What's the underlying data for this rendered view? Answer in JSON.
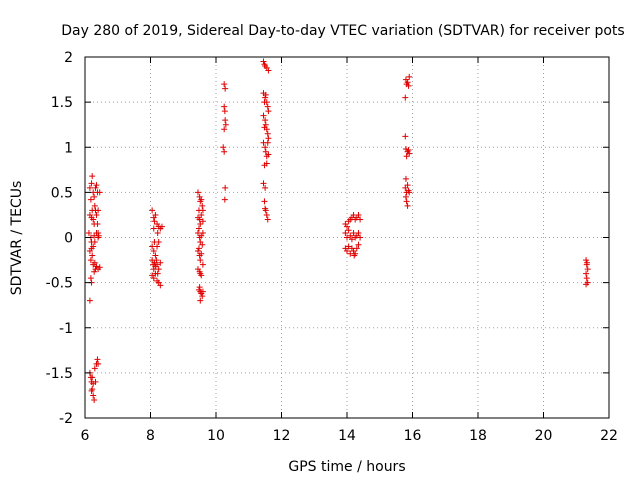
{
  "chart_data": {
    "type": "scatter",
    "title": "Day 280 of 2019, Sidereal Day-to-day VTEC variation (SDTVAR) for receiver pots",
    "xlabel": "GPS time / hours",
    "ylabel": "SDTVAR / TECUs",
    "xlim": [
      6,
      22
    ],
    "ylim": [
      -2,
      2
    ],
    "xticks": [
      6,
      8,
      10,
      12,
      14,
      16,
      18,
      20,
      22
    ],
    "yticks": [
      -2,
      -1.5,
      -1,
      -0.5,
      0,
      0.5,
      1,
      1.5,
      2
    ],
    "xtick_labels": [
      "6",
      "8",
      "10",
      "12",
      "14",
      "16",
      "18",
      "20",
      "22"
    ],
    "ytick_labels": [
      "-2",
      "-1.5",
      "-1",
      "-0.5",
      "0",
      "0.5",
      "1",
      "1.5",
      "2"
    ],
    "grid": true,
    "marker": "plus",
    "color": "#e00000",
    "series": [
      {
        "name": "SDTVAR",
        "points": [
          [
            6.15,
            0.55
          ],
          [
            6.18,
            0.42
          ],
          [
            6.2,
            0.6
          ],
          [
            6.22,
            0.68
          ],
          [
            6.25,
            0.5
          ],
          [
            6.28,
            0.45
          ],
          [
            6.3,
            0.35
          ],
          [
            6.32,
            0.55
          ],
          [
            6.35,
            0.58
          ],
          [
            6.38,
            0.5
          ],
          [
            6.4,
            0.3
          ],
          [
            6.45,
            0.5
          ],
          [
            6.15,
            0.25
          ],
          [
            6.2,
            0.22
          ],
          [
            6.22,
            0.3
          ],
          [
            6.25,
            0.2
          ],
          [
            6.28,
            0.15
          ],
          [
            6.32,
            0.3
          ],
          [
            6.35,
            0.25
          ],
          [
            6.38,
            0.15
          ],
          [
            6.4,
            0.05
          ],
          [
            6.12,
            0.05
          ],
          [
            6.18,
            0.0
          ],
          [
            6.2,
            -0.05
          ],
          [
            6.25,
            -0.1
          ],
          [
            6.28,
            0.02
          ],
          [
            6.3,
            -0.05
          ],
          [
            6.35,
            0.05
          ],
          [
            6.4,
            0.0
          ],
          [
            6.42,
            0.02
          ],
          [
            6.15,
            -0.15
          ],
          [
            6.18,
            -0.25
          ],
          [
            6.2,
            -0.12
          ],
          [
            6.22,
            -0.2
          ],
          [
            6.25,
            -0.3
          ],
          [
            6.3,
            -0.28
          ],
          [
            6.32,
            -0.35
          ],
          [
            6.35,
            -0.32
          ],
          [
            6.4,
            -0.35
          ],
          [
            6.45,
            -0.33
          ],
          [
            6.28,
            -0.38
          ],
          [
            6.18,
            -0.45
          ],
          [
            6.2,
            -0.5
          ],
          [
            6.15,
            -0.7
          ],
          [
            6.15,
            -1.5
          ],
          [
            6.18,
            -1.55
          ],
          [
            6.2,
            -1.6
          ],
          [
            6.22,
            -1.68
          ],
          [
            6.25,
            -1.75
          ],
          [
            6.28,
            -1.8
          ],
          [
            6.22,
            -1.55
          ],
          [
            6.3,
            -1.45
          ],
          [
            6.32,
            -1.6
          ],
          [
            6.35,
            -1.4
          ],
          [
            6.38,
            -1.35
          ],
          [
            6.4,
            -1.4
          ],
          [
            6.25,
            -1.62
          ],
          [
            6.2,
            -1.7
          ],
          [
            8.05,
            0.3
          ],
          [
            8.1,
            0.22
          ],
          [
            8.12,
            0.18
          ],
          [
            8.15,
            0.25
          ],
          [
            8.2,
            0.15
          ],
          [
            8.22,
            0.05
          ],
          [
            8.25,
            0.12
          ],
          [
            8.3,
            0.1
          ],
          [
            8.35,
            0.12
          ],
          [
            8.1,
            0.1
          ],
          [
            8.05,
            -0.1
          ],
          [
            8.1,
            -0.15
          ],
          [
            8.12,
            -0.05
          ],
          [
            8.15,
            -0.2
          ],
          [
            8.2,
            -0.1
          ],
          [
            8.25,
            -0.05
          ],
          [
            8.05,
            -0.25
          ],
          [
            8.08,
            -0.3
          ],
          [
            8.1,
            -0.35
          ],
          [
            8.12,
            -0.28
          ],
          [
            8.15,
            -0.32
          ],
          [
            8.2,
            -0.3
          ],
          [
            8.22,
            -0.4
          ],
          [
            8.25,
            -0.35
          ],
          [
            8.3,
            -0.28
          ],
          [
            8.18,
            -0.25
          ],
          [
            8.05,
            -0.42
          ],
          [
            8.1,
            -0.45
          ],
          [
            8.15,
            -0.4
          ],
          [
            8.2,
            -0.48
          ],
          [
            8.25,
            -0.5
          ],
          [
            8.3,
            -0.53
          ],
          [
            9.45,
            0.5
          ],
          [
            9.5,
            0.45
          ],
          [
            9.52,
            0.4
          ],
          [
            9.55,
            0.42
          ],
          [
            9.58,
            0.35
          ],
          [
            9.6,
            0.3
          ],
          [
            9.48,
            0.3
          ],
          [
            9.45,
            0.22
          ],
          [
            9.5,
            0.2
          ],
          [
            9.52,
            0.15
          ],
          [
            9.55,
            0.25
          ],
          [
            9.6,
            0.18
          ],
          [
            9.45,
            0.05
          ],
          [
            9.5,
            0.0
          ],
          [
            9.52,
            -0.05
          ],
          [
            9.55,
            0.02
          ],
          [
            9.58,
            -0.08
          ],
          [
            9.6,
            0.05
          ],
          [
            9.48,
            0.1
          ],
          [
            9.45,
            -0.15
          ],
          [
            9.5,
            -0.2
          ],
          [
            9.52,
            -0.25
          ],
          [
            9.55,
            -0.18
          ],
          [
            9.6,
            -0.3
          ],
          [
            9.48,
            -0.12
          ],
          [
            9.45,
            -0.35
          ],
          [
            9.5,
            -0.38
          ],
          [
            9.52,
            -0.4
          ],
          [
            9.55,
            -0.42
          ],
          [
            9.5,
            -0.55
          ],
          [
            9.52,
            -0.6
          ],
          [
            9.55,
            -0.62
          ],
          [
            9.58,
            -0.65
          ],
          [
            9.6,
            -0.6
          ],
          [
            9.48,
            -0.58
          ],
          [
            9.52,
            -0.7
          ],
          [
            10.25,
            1.7
          ],
          [
            10.28,
            1.65
          ],
          [
            10.25,
            1.45
          ],
          [
            10.27,
            1.4
          ],
          [
            10.28,
            1.3
          ],
          [
            10.3,
            1.25
          ],
          [
            10.25,
            1.2
          ],
          [
            10.22,
            1.0
          ],
          [
            10.25,
            0.95
          ],
          [
            10.28,
            0.55
          ],
          [
            10.27,
            0.42
          ],
          [
            11.45,
            1.95
          ],
          [
            11.5,
            1.9
          ],
          [
            11.55,
            1.88
          ],
          [
            11.6,
            1.85
          ],
          [
            11.48,
            1.92
          ],
          [
            11.45,
            1.6
          ],
          [
            11.5,
            1.55
          ],
          [
            11.55,
            1.5
          ],
          [
            11.58,
            1.45
          ],
          [
            11.6,
            1.4
          ],
          [
            11.52,
            1.58
          ],
          [
            11.48,
            1.5
          ],
          [
            11.45,
            1.35
          ],
          [
            11.5,
            1.3
          ],
          [
            11.52,
            1.25
          ],
          [
            11.55,
            1.2
          ],
          [
            11.58,
            1.15
          ],
          [
            11.48,
            1.22
          ],
          [
            11.6,
            1.1
          ],
          [
            11.45,
            1.05
          ],
          [
            11.5,
            1.0
          ],
          [
            11.52,
            0.95
          ],
          [
            11.55,
            0.9
          ],
          [
            11.58,
            1.05
          ],
          [
            11.6,
            0.92
          ],
          [
            11.48,
            0.8
          ],
          [
            11.55,
            0.82
          ],
          [
            11.45,
            0.6
          ],
          [
            11.5,
            0.55
          ],
          [
            11.48,
            0.4
          ],
          [
            11.5,
            0.32
          ],
          [
            11.52,
            0.3
          ],
          [
            11.55,
            0.25
          ],
          [
            11.58,
            0.2
          ],
          [
            13.95,
            0.15
          ],
          [
            14.0,
            0.12
          ],
          [
            14.05,
            0.18
          ],
          [
            14.1,
            0.2
          ],
          [
            14.15,
            0.22
          ],
          [
            14.2,
            0.25
          ],
          [
            14.25,
            0.2
          ],
          [
            14.3,
            0.22
          ],
          [
            14.35,
            0.25
          ],
          [
            14.4,
            0.2
          ],
          [
            13.95,
            0.05
          ],
          [
            14.0,
            0.0
          ],
          [
            14.05,
            0.08
          ],
          [
            14.1,
            0.02
          ],
          [
            14.15,
            -0.02
          ],
          [
            14.2,
            0.05
          ],
          [
            14.25,
            0.0
          ],
          [
            14.3,
            0.02
          ],
          [
            14.35,
            0.05
          ],
          [
            14.4,
            0.0
          ],
          [
            13.95,
            -0.12
          ],
          [
            14.0,
            -0.15
          ],
          [
            14.05,
            -0.1
          ],
          [
            14.1,
            -0.18
          ],
          [
            14.15,
            -0.12
          ],
          [
            14.2,
            -0.15
          ],
          [
            14.25,
            -0.18
          ],
          [
            14.3,
            -0.12
          ],
          [
            14.35,
            -0.08
          ],
          [
            14.22,
            -0.2
          ],
          [
            15.8,
            1.75
          ],
          [
            15.85,
            1.72
          ],
          [
            15.9,
            1.78
          ],
          [
            15.88,
            1.68
          ],
          [
            15.82,
            1.7
          ],
          [
            15.78,
            1.55
          ],
          [
            15.78,
            1.12
          ],
          [
            15.8,
            0.98
          ],
          [
            15.85,
            0.95
          ],
          [
            15.88,
            0.97
          ],
          [
            15.9,
            0.93
          ],
          [
            15.82,
            0.9
          ],
          [
            15.8,
            0.65
          ],
          [
            15.85,
            0.58
          ],
          [
            15.78,
            0.55
          ],
          [
            15.82,
            0.5
          ],
          [
            15.88,
            0.52
          ],
          [
            15.9,
            0.5
          ],
          [
            15.8,
            0.45
          ],
          [
            15.82,
            0.4
          ],
          [
            15.85,
            0.35
          ],
          [
            21.3,
            -0.25
          ],
          [
            21.32,
            -0.3
          ],
          [
            21.35,
            -0.35
          ],
          [
            21.3,
            -0.4
          ],
          [
            21.32,
            -0.45
          ],
          [
            21.35,
            -0.5
          ],
          [
            21.3,
            -0.52
          ],
          [
            21.33,
            -0.28
          ]
        ]
      }
    ]
  }
}
